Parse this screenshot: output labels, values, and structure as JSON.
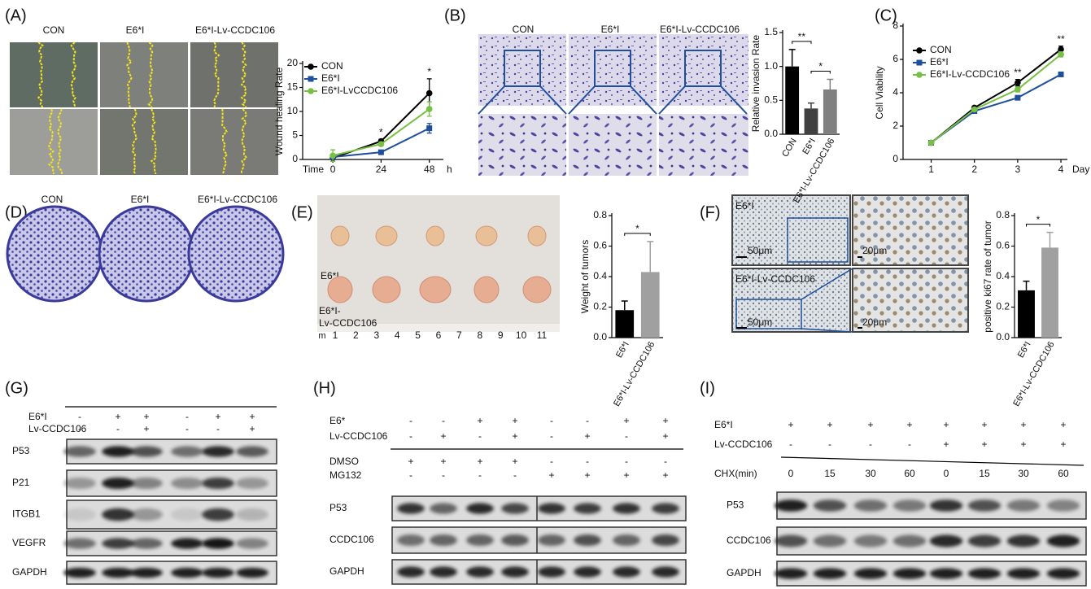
{
  "chart_data": [
    {
      "type": "line",
      "y_label": "Wound healing Rate",
      "x_label": "Time",
      "x_unit": "h",
      "x": [
        0,
        24,
        48
      ],
      "xlim": [
        -15,
        55
      ],
      "xticks": [
        0,
        24,
        48
      ],
      "ylim": [
        0,
        20
      ],
      "yticks": [
        0,
        5,
        10,
        15,
        20
      ],
      "legend": "upper left",
      "series": [
        {
          "name": "CON",
          "color": "#000000",
          "marker": "circle",
          "values": [
            0.3,
            3.8,
            13.8
          ],
          "errors": [
            0.3,
            0.4,
            3.0
          ]
        },
        {
          "name": "E6*I",
          "color": "#1f4e9c",
          "marker": "square",
          "values": [
            0.5,
            1.5,
            6.5
          ],
          "errors": [
            0.4,
            0.3,
            1.0
          ]
        },
        {
          "name": "E6*I-LvCCDC106",
          "color": "#78c043",
          "marker": "circle",
          "values": [
            0.8,
            3.2,
            10.5
          ],
          "errors": [
            1.2,
            0.4,
            1.5
          ]
        }
      ],
      "annotations": [
        {
          "text": "*",
          "x": 24
        },
        {
          "text": "*",
          "x": 48
        }
      ]
    },
    {
      "type": "bar",
      "y_label": "Relative invasion Rate",
      "categories": [
        "CON",
        "E6*I",
        "E6*I-Lv-CCDC106"
      ],
      "values": [
        1.0,
        0.38,
        0.66
      ],
      "errors": [
        0.25,
        0.08,
        0.15
      ],
      "colors": [
        "#000000",
        "#404040",
        "#808080"
      ],
      "ylim": [
        0,
        1.5
      ],
      "yticks": [
        {
          "value": 0,
          "label": "0.0"
        },
        0.5,
        {
          "value": 1,
          "label": "1.0"
        },
        1.5
      ],
      "annotations": [
        {
          "text": "**"
        },
        {
          "text": "*"
        }
      ]
    },
    {
      "type": "line",
      "y_label": "Cell Viability",
      "x_label": "Day",
      "x": [
        1,
        2,
        3,
        4
      ],
      "xlim": [
        0.35,
        4.15
      ],
      "xticks": [
        1,
        2,
        3,
        4
      ],
      "ylim": [
        0,
        8
      ],
      "yticks": [
        0,
        2,
        4,
        6,
        8
      ],
      "legend": "upper left",
      "series": [
        {
          "name": "CON",
          "color": "#000000",
          "marker": "circle",
          "values": [
            1,
            3.1,
            4.6,
            6.6
          ],
          "errors": [
            0.05,
            0.1,
            0.2,
            0.2
          ]
        },
        {
          "name": "E6*I",
          "color": "#1f4e9c",
          "marker": "square",
          "values": [
            1,
            2.9,
            3.7,
            5.1
          ],
          "errors": [
            0.05,
            0.1,
            0.1,
            0.1
          ]
        },
        {
          "name": "E6*I-Lv-CCDC106",
          "color": "#78c043",
          "marker": "circle",
          "values": [
            1,
            3.0,
            4.2,
            6.3
          ],
          "errors": [
            0.05,
            0.1,
            0.15,
            0.15
          ]
        }
      ],
      "annotations": [
        {
          "text": "**",
          "x": 3
        },
        {
          "text": "**",
          "x": 4
        }
      ]
    },
    {
      "type": "bar",
      "y_label": "Weight of tumors",
      "categories": [
        "E6*I",
        "E6*I-Lv-CCDC106"
      ],
      "values": [
        0.18,
        0.43
      ],
      "errors": [
        0.06,
        0.2
      ],
      "colors": [
        "#000000",
        "#a0a0a0"
      ],
      "ylim": [
        0,
        0.8
      ],
      "yticks": [
        {
          "value": 0,
          "label": "0.0"
        },
        0.2,
        0.4,
        0.6,
        0.8
      ],
      "annotations": [
        {
          "text": "*"
        }
      ]
    },
    {
      "type": "bar",
      "y_label": "positive ki67 rate of tumor",
      "categories": [
        "E6*I",
        "E6*I-Lv-CCDC106"
      ],
      "values": [
        0.31,
        0.59
      ],
      "errors": [
        0.06,
        0.1
      ],
      "colors": [
        "#000000",
        "#a0a0a0"
      ],
      "ylim": [
        0,
        0.8
      ],
      "yticks": [
        {
          "value": 0,
          "label": "0.0"
        },
        0.2,
        0.4,
        0.6,
        0.8
      ],
      "annotations": [
        {
          "text": "*"
        }
      ]
    }
  ],
  "panels": {
    "A": {
      "letter": "(A)",
      "image_labels": [
        "CON",
        "E6*I",
        "E6*I-Lv-CCDC106"
      ]
    },
    "B": {
      "letter": "(B)",
      "image_labels": [
        "CON",
        "E6*I",
        "E6*I-Lv-CCDC106"
      ]
    },
    "C": {
      "letter": "(C)"
    },
    "D": {
      "letter": "(D)",
      "image_labels": [
        "CON",
        "E6*I",
        "E6*I-Lv-CCDC106"
      ]
    },
    "E": {
      "letter": "(E)",
      "photo_labels": [
        "E6*I",
        "E6*I-",
        "Lv-CCDC106"
      ],
      "ruler": [
        "m",
        "1",
        "2",
        "3",
        "4",
        "5",
        "6",
        "7",
        "8",
        "9",
        "10",
        "11"
      ]
    },
    "F": {
      "letter": "(F)",
      "image_labels": [
        "E6*I",
        "E6*I-Lv-CCDC106"
      ],
      "scale_bars": [
        "50μm",
        "20μm",
        "50μm",
        "20μm"
      ]
    },
    "G": {
      "letter": "(G)",
      "conditions": [
        {
          "name": "E6*I",
          "signs": [
            "-",
            "+",
            "+",
            "-",
            "+",
            "+"
          ]
        },
        {
          "name": "Lv-CCDC106",
          "signs": [
            "-",
            "-",
            "+",
            "-",
            "-",
            "+"
          ]
        }
      ],
      "bands": [
        "P53",
        "P21",
        "ITGB1",
        "VEGFR",
        "GAPDH"
      ]
    },
    "H": {
      "letter": "(H)",
      "conditions": [
        {
          "name": "E6*",
          "signs": [
            "-",
            "-",
            "+",
            "+",
            "-",
            "-",
            "+",
            "+"
          ]
        },
        {
          "name": "Lv-CCDC106",
          "signs": [
            "-",
            "+",
            "-",
            "+",
            "-",
            "+",
            "-",
            "+"
          ]
        },
        {
          "name": "DMSO",
          "signs": [
            "+",
            "+",
            "+",
            "+",
            "-",
            "-",
            "-",
            "-"
          ]
        },
        {
          "name": "MG132",
          "signs": [
            "-",
            "-",
            "-",
            "-",
            "+",
            "+",
            "+",
            "+"
          ]
        }
      ],
      "bands": [
        "P53",
        "CCDC106",
        "GAPDH"
      ]
    },
    "I": {
      "letter": "(I)",
      "conditions": [
        {
          "name": "E6*I",
          "signs": [
            "+",
            "+",
            "+",
            "+",
            "+",
            "+",
            "+",
            "+"
          ]
        },
        {
          "name": "Lv-CCDC106",
          "signs": [
            "-",
            "-",
            "-",
            "-",
            "+",
            "+",
            "+",
            "+"
          ]
        },
        {
          "name": "CHX(min)",
          "signs": [
            "0",
            "15",
            "30",
            "60",
            "0",
            "15",
            "30",
            "60"
          ]
        }
      ],
      "bands": [
        "P53",
        "CCDC106",
        "GAPDH"
      ]
    }
  }
}
